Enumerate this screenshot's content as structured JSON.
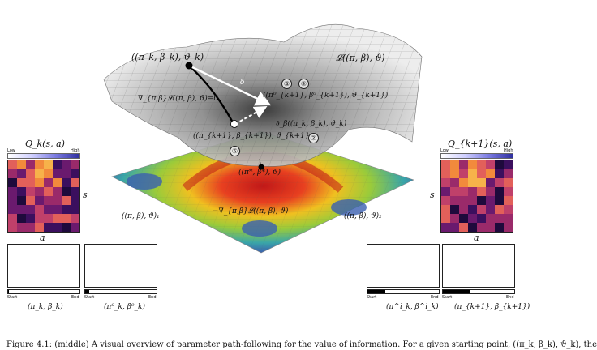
{
  "surface_label": "𝓛((π, β), ϑ)",
  "start_point_label": "((π_k, β_k), ϑ_k)",
  "delta_label": "δ",
  "gradient_zero_label": "∇_{π,β}𝓛((π, β), ϑ)=0",
  "next_point_label": "((π⁰_{k+1}, β⁰_{k+1}), ϑ_{k+1})",
  "partial_label": "∂_β((π_k, β_k), ϑ_k)",
  "updated_point_label": "((π_{k+1}, β_{k+1}), ϑ_{k+1})",
  "optimum_label": "((π*, β*), ϑ)",
  "floor_gradient_label": "−∇_{π,β}𝓛((π, β), ϑ)",
  "region_left_label": "((π, β), ϑ)₁",
  "region_right_label": "((π, β), ϑ)₂",
  "markers": [
    "③",
    "④",
    "②",
    "⑥"
  ],
  "left_panel": {
    "title": "Q_k(s, a)",
    "low": "Low",
    "high": "High",
    "axis_y": "s",
    "axis_x": "a",
    "box1_caption": "(π_k, β_k)",
    "box2_caption": "(π⁰_k, β⁰_k)",
    "start": "Start",
    "end": "End",
    "progress1": 0.01,
    "progress2": 0.06
  },
  "right_panel": {
    "title": "Q_{k+1}(s, a)",
    "low": "Low",
    "high": "High",
    "axis_y": "s",
    "axis_x": "a",
    "box1_caption": "(π^i_k, β^i_k)",
    "box2_caption": "(π_{k+1}, β_{k+1})",
    "start": "Start",
    "end": "End",
    "progress1": 0.25,
    "progress2": 0.38
  },
  "colors": {
    "heat_low": "#2a0b4a",
    "heat_mid": "#c0306a",
    "heat_high": "#f7a53a"
  },
  "caption": "Figure 4.1: (middle) A visual overview of parameter path-following for the value of information. For a given starting point, ((π_k, β_k), ϑ_k), the"
}
